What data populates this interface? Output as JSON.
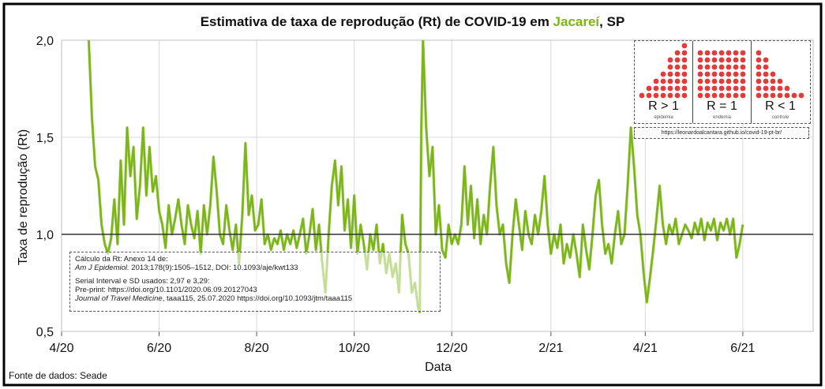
{
  "title": {
    "prefix": "Estimativa de taxa de reprodução (Rt) de COVID-19 em ",
    "city": "Jacareí",
    "suffix": ", SP"
  },
  "colors": {
    "main": "#7cb518",
    "light": "#b8d98a",
    "reference": "#333333",
    "city": "#7cb518",
    "dot": "#e23b3b"
  },
  "axes": {
    "ylabel": "Taxa de reprodução (Rt)",
    "xlabel": "Data"
  },
  "source": "Fonte de dados: Seade",
  "notes": {
    "line1": "Cálculo da Rt: Anexo 14 de:",
    "line2_italic": "Am J Epidemiol.",
    "line2_rest": " 2013;178(9):1505–1512, DOI: 10.1093/aje/kwt133",
    "line3": "Serial Interval e SD usados: 2,97 e 3,29:",
    "line4": "Pre-print: https://doi.org/10.1101/2020.06.09.20127043",
    "line5_italic": "Journal of Travel Medicine",
    "line5_rest": ", taaa115, 25.07.2020 https://doi.org/10.1093/jtm/taaa115"
  },
  "inset": {
    "panels": [
      {
        "label": "R > 1",
        "sub": "epidemia"
      },
      {
        "label": "R = 1",
        "sub": "endemia"
      },
      {
        "label": "R < 1",
        "sub": "controle"
      }
    ],
    "url": "https://leonardoalcantara.github.io/covid-19-pt-br/"
  },
  "chart_data": {
    "type": "line",
    "xlabel": "Data",
    "ylabel": "Taxa de reprodução (Rt)",
    "ylim": [
      0.5,
      2.0
    ],
    "yticks": [
      "0,5",
      "1,0",
      "1,5",
      "2,0"
    ],
    "x_range": [
      "2020-04-01",
      "2021-07-15"
    ],
    "xticks": [
      {
        "date": "2020-04-01",
        "label": "4/20"
      },
      {
        "date": "2020-06-01",
        "label": "6/20"
      },
      {
        "date": "2020-08-01",
        "label": "8/20"
      },
      {
        "date": "2020-10-01",
        "label": "10/20"
      },
      {
        "date": "2020-12-01",
        "label": "12/20"
      },
      {
        "date": "2021-02-01",
        "label": "2/21"
      },
      {
        "date": "2021-04-01",
        "label": "4/21"
      },
      {
        "date": "2021-06-01",
        "label": "6/21"
      }
    ],
    "reference_line": 1.0,
    "grid": true,
    "series": [
      {
        "points": [
          [
            "2020-04-18",
            2.0
          ],
          [
            "2020-04-20",
            1.6
          ],
          [
            "2020-04-22",
            1.35
          ],
          [
            "2020-04-24",
            1.28
          ],
          [
            "2020-04-26",
            1.05
          ],
          [
            "2020-04-28",
            0.95
          ],
          [
            "2020-04-30",
            0.9
          ],
          [
            "2020-05-02",
            0.98
          ],
          [
            "2020-05-04",
            1.18
          ],
          [
            "2020-05-06",
            0.95
          ],
          [
            "2020-05-08",
            1.38
          ],
          [
            "2020-05-10",
            1.05
          ],
          [
            "2020-05-12",
            1.55
          ],
          [
            "2020-05-14",
            1.3
          ],
          [
            "2020-05-16",
            1.45
          ],
          [
            "2020-05-18",
            1.08
          ],
          [
            "2020-05-20",
            1.25
          ],
          [
            "2020-05-22",
            1.55
          ],
          [
            "2020-05-24",
            1.2
          ],
          [
            "2020-05-26",
            1.45
          ],
          [
            "2020-05-28",
            1.22
          ],
          [
            "2020-05-30",
            1.3
          ],
          [
            "2020-06-01",
            1.12
          ],
          [
            "2020-06-03",
            1.05
          ],
          [
            "2020-06-05",
            0.93
          ],
          [
            "2020-06-07",
            1.15
          ],
          [
            "2020-06-09",
            1.0
          ],
          [
            "2020-06-11",
            1.08
          ],
          [
            "2020-06-13",
            1.18
          ],
          [
            "2020-06-15",
            1.05
          ],
          [
            "2020-06-17",
            0.95
          ],
          [
            "2020-06-19",
            1.15
          ],
          [
            "2020-06-21",
            1.05
          ],
          [
            "2020-06-23",
            0.98
          ],
          [
            "2020-06-25",
            1.12
          ],
          [
            "2020-06-27",
            0.9
          ],
          [
            "2020-06-29",
            1.15
          ],
          [
            "2020-07-01",
            1.0
          ],
          [
            "2020-07-03",
            1.15
          ],
          [
            "2020-07-05",
            1.4
          ],
          [
            "2020-07-07",
            1.22
          ],
          [
            "2020-07-09",
            1.0
          ],
          [
            "2020-07-11",
            0.95
          ],
          [
            "2020-07-13",
            1.15
          ],
          [
            "2020-07-15",
            1.02
          ],
          [
            "2020-07-17",
            0.92
          ],
          [
            "2020-07-19",
            1.05
          ],
          [
            "2020-07-21",
            0.85
          ],
          [
            "2020-07-23",
            1.1
          ],
          [
            "2020-07-25",
            1.47
          ],
          [
            "2020-07-27",
            1.1
          ],
          [
            "2020-07-29",
            1.2
          ],
          [
            "2020-07-31",
            1.02
          ],
          [
            "2020-08-02",
            1.05
          ],
          [
            "2020-08-04",
            1.18
          ],
          [
            "2020-08-06",
            0.95
          ],
          [
            "2020-08-08",
            1.0
          ],
          [
            "2020-08-10",
            0.92
          ],
          [
            "2020-08-12",
            0.98
          ],
          [
            "2020-08-14",
            0.95
          ],
          [
            "2020-08-16",
            1.02
          ],
          [
            "2020-08-18",
            0.92
          ],
          [
            "2020-08-20",
            1.0
          ],
          [
            "2020-08-22",
            0.95
          ],
          [
            "2020-08-24",
            1.02
          ],
          [
            "2020-08-26",
            0.93
          ],
          [
            "2020-08-28",
            1.0
          ],
          [
            "2020-08-30",
            1.08
          ],
          [
            "2020-09-01",
            0.9
          ],
          [
            "2020-09-03",
            1.0
          ],
          [
            "2020-09-05",
            1.13
          ],
          [
            "2020-09-07",
            0.92
          ],
          [
            "2020-09-09",
            1.05
          ],
          [
            "2020-09-11",
            0.85
          ],
          [
            "2020-09-13",
            0.7
          ],
          [
            "2020-09-15",
            1.0
          ],
          [
            "2020-09-17",
            1.25
          ],
          [
            "2020-09-19",
            1.38
          ],
          [
            "2020-09-21",
            1.15
          ],
          [
            "2020-09-23",
            1.35
          ],
          [
            "2020-09-25",
            1.02
          ],
          [
            "2020-09-27",
            1.18
          ],
          [
            "2020-09-29",
            0.93
          ],
          [
            "2020-10-01",
            1.2
          ],
          [
            "2020-10-03",
            0.9
          ],
          [
            "2020-10-05",
            1.05
          ],
          [
            "2020-10-07",
            0.95
          ],
          [
            "2020-10-09",
            0.82
          ],
          [
            "2020-10-11",
            1.0
          ],
          [
            "2020-10-13",
            0.92
          ],
          [
            "2020-10-15",
            1.05
          ],
          [
            "2020-10-17",
            0.85
          ],
          [
            "2020-10-19",
            0.95
          ],
          [
            "2020-10-21",
            0.8
          ],
          [
            "2020-10-23",
            0.9
          ],
          [
            "2020-10-25",
            0.78
          ],
          [
            "2020-10-27",
            0.85
          ],
          [
            "2020-10-29",
            0.7
          ],
          [
            "2020-10-31",
            1.1
          ],
          [
            "2020-11-02",
            0.95
          ],
          [
            "2020-11-04",
            0.9
          ],
          [
            "2020-11-06",
            0.7
          ],
          [
            "2020-11-08",
            0.75
          ],
          [
            "2020-11-10",
            0.62
          ],
          [
            "2020-11-11",
            0.6
          ],
          [
            "2020-11-12",
            1.55
          ],
          [
            "2020-11-13",
            2.0
          ],
          [
            "2020-11-15",
            1.55
          ],
          [
            "2020-11-17",
            1.3
          ],
          [
            "2020-11-19",
            1.45
          ],
          [
            "2020-11-21",
            1.0
          ],
          [
            "2020-11-23",
            1.15
          ],
          [
            "2020-11-25",
            0.92
          ],
          [
            "2020-11-27",
            0.88
          ],
          [
            "2020-11-29",
            1.05
          ],
          [
            "2020-12-01",
            0.95
          ],
          [
            "2020-12-03",
            1.0
          ],
          [
            "2020-12-05",
            0.95
          ],
          [
            "2020-12-07",
            1.05
          ],
          [
            "2020-12-09",
            1.35
          ],
          [
            "2020-12-11",
            1.05
          ],
          [
            "2020-12-13",
            1.25
          ],
          [
            "2020-12-15",
            0.98
          ],
          [
            "2020-12-17",
            1.18
          ],
          [
            "2020-12-19",
            0.95
          ],
          [
            "2020-12-21",
            1.1
          ],
          [
            "2020-12-23",
            1.0
          ],
          [
            "2020-12-25",
            1.25
          ],
          [
            "2020-12-27",
            1.45
          ],
          [
            "2020-12-29",
            1.15
          ],
          [
            "2020-12-31",
            1.0
          ],
          [
            "2021-01-02",
            1.05
          ],
          [
            "2021-01-04",
            0.85
          ],
          [
            "2021-01-06",
            0.75
          ],
          [
            "2021-01-08",
            1.0
          ],
          [
            "2021-01-10",
            1.18
          ],
          [
            "2021-01-12",
            1.05
          ],
          [
            "2021-01-14",
            0.92
          ],
          [
            "2021-01-16",
            1.12
          ],
          [
            "2021-01-18",
            1.0
          ],
          [
            "2021-01-20",
            0.95
          ],
          [
            "2021-01-22",
            1.1
          ],
          [
            "2021-01-24",
            1.0
          ],
          [
            "2021-01-26",
            1.12
          ],
          [
            "2021-01-28",
            1.3
          ],
          [
            "2021-01-30",
            1.05
          ],
          [
            "2021-02-01",
            0.9
          ],
          [
            "2021-02-03",
            1.0
          ],
          [
            "2021-02-05",
            0.93
          ],
          [
            "2021-02-07",
            1.05
          ],
          [
            "2021-02-09",
            0.85
          ],
          [
            "2021-02-11",
            0.95
          ],
          [
            "2021-02-13",
            0.88
          ],
          [
            "2021-02-15",
            1.0
          ],
          [
            "2021-02-17",
            0.9
          ],
          [
            "2021-02-19",
            0.78
          ],
          [
            "2021-02-21",
            1.05
          ],
          [
            "2021-02-23",
            0.92
          ],
          [
            "2021-02-25",
            0.82
          ],
          [
            "2021-02-27",
            1.0
          ],
          [
            "2021-03-01",
            1.2
          ],
          [
            "2021-03-03",
            1.28
          ],
          [
            "2021-03-05",
            1.05
          ],
          [
            "2021-03-07",
            0.9
          ],
          [
            "2021-03-09",
            0.95
          ],
          [
            "2021-03-11",
            0.85
          ],
          [
            "2021-03-13",
            1.0
          ],
          [
            "2021-03-15",
            1.12
          ],
          [
            "2021-03-17",
            0.95
          ],
          [
            "2021-03-19",
            1.0
          ],
          [
            "2021-03-21",
            1.25
          ],
          [
            "2021-03-23",
            1.55
          ],
          [
            "2021-03-25",
            1.35
          ],
          [
            "2021-03-27",
            1.1
          ],
          [
            "2021-03-29",
            1.0
          ],
          [
            "2021-03-31",
            0.8
          ],
          [
            "2021-04-02",
            0.65
          ],
          [
            "2021-04-04",
            0.78
          ],
          [
            "2021-04-06",
            0.92
          ],
          [
            "2021-04-08",
            1.08
          ],
          [
            "2021-04-10",
            1.25
          ],
          [
            "2021-04-12",
            1.05
          ],
          [
            "2021-04-14",
            0.95
          ],
          [
            "2021-04-16",
            1.05
          ],
          [
            "2021-04-18",
            1.0
          ],
          [
            "2021-04-20",
            1.08
          ],
          [
            "2021-04-22",
            0.95
          ],
          [
            "2021-04-24",
            1.0
          ],
          [
            "2021-04-26",
            1.05
          ],
          [
            "2021-04-28",
            1.02
          ],
          [
            "2021-04-30",
            0.98
          ],
          [
            "2021-05-02",
            1.06
          ],
          [
            "2021-05-04",
            1.0
          ],
          [
            "2021-05-06",
            1.08
          ],
          [
            "2021-05-08",
            0.97
          ],
          [
            "2021-05-10",
            1.06
          ],
          [
            "2021-05-12",
            1.02
          ],
          [
            "2021-05-14",
            1.08
          ],
          [
            "2021-05-16",
            0.97
          ],
          [
            "2021-05-18",
            1.06
          ],
          [
            "2021-05-20",
            1.02
          ],
          [
            "2021-05-22",
            1.08
          ],
          [
            "2021-05-24",
            1.0
          ],
          [
            "2021-05-26",
            1.08
          ],
          [
            "2021-05-28",
            0.88
          ],
          [
            "2021-05-30",
            0.95
          ],
          [
            "2021-06-01",
            1.05
          ]
        ]
      }
    ]
  }
}
